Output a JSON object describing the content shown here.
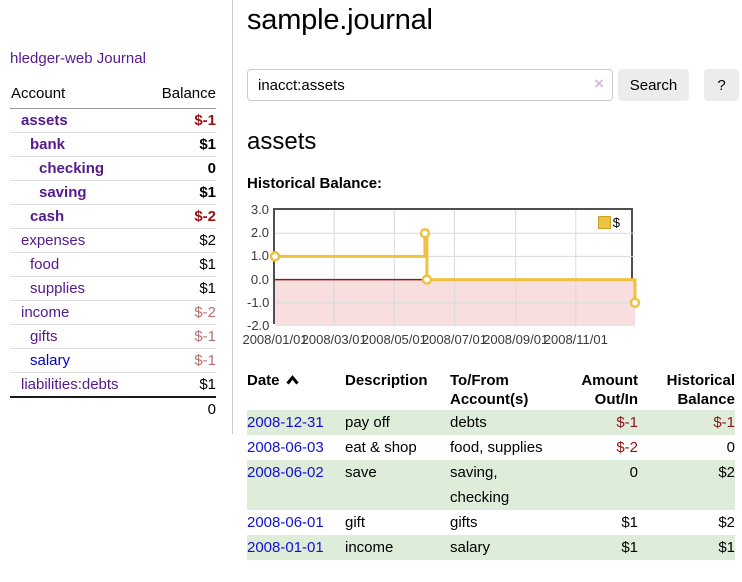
{
  "app": {
    "title": "hledger-web"
  },
  "sidebar": {
    "journal_label": "Journal",
    "accounts": {
      "header_account": "Account",
      "header_balance": "Balance",
      "rows": [
        {
          "account": "assets",
          "balance": "$-1",
          "indent": 1,
          "bold": true,
          "negative": true,
          "blue": false
        },
        {
          "account": "bank",
          "balance": "$1",
          "indent": 2,
          "bold": true,
          "negative": false,
          "blue": false
        },
        {
          "account": "checking",
          "balance": "0",
          "indent": 3,
          "bold": true,
          "negative": false,
          "blue": false
        },
        {
          "account": "saving",
          "balance": "$1",
          "indent": 3,
          "bold": true,
          "negative": false,
          "blue": false
        },
        {
          "account": "cash",
          "balance": "$-2",
          "indent": 2,
          "bold": true,
          "negative": true,
          "blue": false
        },
        {
          "account": "expenses",
          "balance": "$2",
          "indent": 1,
          "bold": false,
          "negative": false,
          "blue": false
        },
        {
          "account": "food",
          "balance": "$1",
          "indent": 2,
          "bold": false,
          "negative": false,
          "blue": false
        },
        {
          "account": "supplies",
          "balance": "$1",
          "indent": 2,
          "bold": false,
          "negative": false,
          "blue": false
        },
        {
          "account": "income",
          "balance": "$-2",
          "indent": 1,
          "bold": false,
          "negative": true,
          "blue": false
        },
        {
          "account": "gifts",
          "balance": "$-1",
          "indent": 2,
          "bold": false,
          "negative": true,
          "blue": false
        },
        {
          "account": "salary",
          "balance": "$-1",
          "indent": 2,
          "bold": false,
          "negative": true,
          "blue": true
        },
        {
          "account": "liabilities:debts",
          "balance": "$1",
          "indent": 1,
          "bold": false,
          "negative": false,
          "blue": false
        }
      ],
      "total": "0"
    }
  },
  "main": {
    "title": "sample.journal",
    "search": {
      "value": "inacct:assets",
      "clear_icon": "×",
      "search_label": "Search",
      "help_label": "?"
    },
    "account_heading": "assets",
    "chart_heading": "Historical Balance:"
  },
  "chart_data": {
    "type": "line",
    "title": "Historical Balance",
    "legend": {
      "label": "$",
      "color": "#edc240",
      "position": "top-right"
    },
    "series": [
      {
        "name": "$",
        "color": "#edc240",
        "points": [
          [
            "2008-01-01",
            1
          ],
          [
            "2008-06-01",
            2
          ],
          [
            "2008-06-03",
            0
          ],
          [
            "2008-12-31",
            -1
          ]
        ]
      }
    ],
    "step_path": [
      [
        0,
        1
      ],
      [
        0.4164,
        1
      ],
      [
        0.4164,
        2
      ],
      [
        0.4219,
        2
      ],
      [
        0.4219,
        0
      ],
      [
        1,
        0
      ],
      [
        1,
        -1
      ]
    ],
    "markers": [
      [
        0,
        1
      ],
      [
        0.4164,
        2
      ],
      [
        0.4219,
        0
      ],
      [
        1,
        -1
      ]
    ],
    "x_ticks": [
      {
        "label": "2008/01/01",
        "pos": 0
      },
      {
        "label": "2008/03/01",
        "pos": 0.1644
      },
      {
        "label": "2008/05/01",
        "pos": 0.3315
      },
      {
        "label": "2008/07/01",
        "pos": 0.4986
      },
      {
        "label": "2008/09/01",
        "pos": 0.6685
      },
      {
        "label": "2008/11/01",
        "pos": 0.8356
      }
    ],
    "y_ticks": [
      {
        "label": "3.0",
        "value": 3
      },
      {
        "label": "2.0",
        "value": 2
      },
      {
        "label": "1.0",
        "value": 1
      },
      {
        "label": "0.0",
        "value": 0
      },
      {
        "label": "-1.0",
        "value": -1
      },
      {
        "label": "-2.0",
        "value": -2
      }
    ],
    "ylim": [
      -2,
      3
    ],
    "y_gridlines": [
      2,
      1,
      -1
    ],
    "grid_on": true,
    "grid_color": "#d9d9d9",
    "zero_line_color": "#8b1a1a",
    "negative_region_color": "#f8dede"
  },
  "register": {
    "headers": {
      "date": "Date",
      "description": "Description",
      "accounts": "To/From Account(s)",
      "amount": "Amount Out/In",
      "balance": "Historical Balance"
    },
    "rows": [
      {
        "date": "2008-12-31",
        "description": "pay off",
        "accounts": "debts",
        "amount": "$-1",
        "amount_negative": true,
        "balance": "$-1",
        "balance_negative": true
      },
      {
        "date": "2008-06-03",
        "description": "eat & shop",
        "accounts": "food, supplies",
        "amount": "$-2",
        "amount_negative": true,
        "balance": "0",
        "balance_negative": false
      },
      {
        "date": "2008-06-02",
        "description": "save",
        "accounts": "saving, checking",
        "amount": "0",
        "amount_negative": false,
        "balance": "$2",
        "balance_negative": false
      },
      {
        "date": "2008-06-01",
        "description": "gift",
        "accounts": "gifts",
        "amount": "$1",
        "amount_negative": false,
        "balance": "$2",
        "balance_negative": false
      },
      {
        "date": "2008-01-01",
        "description": "income",
        "accounts": "salary",
        "amount": "$1",
        "amount_negative": false,
        "balance": "$1",
        "balance_negative": false
      }
    ]
  }
}
